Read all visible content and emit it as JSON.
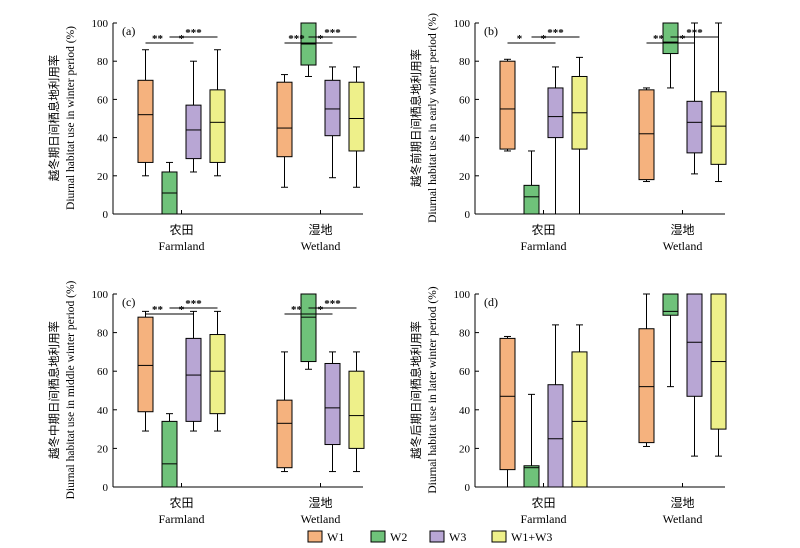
{
  "colors": {
    "W1": "#f5b27e",
    "W2": "#6fc27a",
    "W3": "#b8a6d4",
    "W1+W3": "#eef08a"
  },
  "legend": [
    "W1",
    "W2",
    "W3",
    "W1+W3"
  ],
  "chart_data": [
    {
      "type": "box",
      "label": "(a)",
      "ylabel_cn": "越冬期日间栖息地利用率",
      "ylabel_en": "Diurnal habitat use in winter period (%)",
      "ylim": [
        0,
        100
      ],
      "yticks": [
        0,
        20,
        40,
        60,
        80,
        100
      ],
      "groups": [
        {
          "name_cn": "农田",
          "name_en": "Farmland",
          "boxes": [
            {
              "series": "W1",
              "min": 20,
              "q1": 27,
              "median": 52,
              "q3": 70,
              "max": 86
            },
            {
              "series": "W2",
              "min": 0,
              "q1": 0,
              "median": 11,
              "q3": 22,
              "max": 27
            },
            {
              "series": "W3",
              "min": 22,
              "q1": 29,
              "median": 44,
              "q3": 57,
              "max": 80
            },
            {
              "series": "W1+W3",
              "min": 20,
              "q1": 27,
              "median": 48,
              "q3": 65,
              "max": 86
            }
          ],
          "sig": [
            {
              "from": 0,
              "to": 1,
              "label": "**",
              "level": 0
            },
            {
              "from": 1,
              "to": 2,
              "label": "*",
              "level": 0
            },
            {
              "from": 1,
              "to": 3,
              "label": "***",
              "level": 1
            }
          ]
        },
        {
          "name_cn": "湿地",
          "name_en": "Wetland",
          "boxes": [
            {
              "series": "W1",
              "min": 14,
              "q1": 30,
              "median": 45,
              "q3": 69,
              "max": 73
            },
            {
              "series": "W2",
              "min": 72,
              "q1": 78,
              "median": 89,
              "q3": 100,
              "max": 100
            },
            {
              "series": "W3",
              "min": 19,
              "q1": 41,
              "median": 55,
              "q3": 70,
              "max": 77
            },
            {
              "series": "W1+W3",
              "min": 14,
              "q1": 33,
              "median": 50,
              "q3": 69,
              "max": 77
            }
          ],
          "sig": [
            {
              "from": 0,
              "to": 1,
              "label": "***",
              "level": 0
            },
            {
              "from": 1,
              "to": 2,
              "label": "*",
              "level": 0
            },
            {
              "from": 1,
              "to": 3,
              "label": "***",
              "level": 1
            }
          ]
        }
      ]
    },
    {
      "type": "box",
      "label": "(b)",
      "ylabel_cn": "越冬前期日间栖息地利用率",
      "ylabel_en": "Diurnal habitat use in early winter period (%)",
      "ylim": [
        0,
        100
      ],
      "yticks": [
        0,
        20,
        40,
        60,
        80,
        100
      ],
      "groups": [
        {
          "name_cn": "农田",
          "name_en": "Farmland",
          "boxes": [
            {
              "series": "W1",
              "min": 33,
              "q1": 34,
              "median": 55,
              "q3": 80,
              "max": 81
            },
            {
              "series": "W2",
              "min": 0,
              "q1": 0,
              "median": 9,
              "q3": 15,
              "max": 33
            },
            {
              "series": "W3",
              "min": 0,
              "q1": 40,
              "median": 51,
              "q3": 66,
              "max": 77
            },
            {
              "series": "W1+W3",
              "min": 0,
              "q1": 34,
              "median": 53,
              "q3": 72,
              "max": 82
            }
          ],
          "sig": [
            {
              "from": 0,
              "to": 1,
              "label": "*",
              "level": 0
            },
            {
              "from": 1,
              "to": 2,
              "label": "*",
              "level": 0
            },
            {
              "from": 1,
              "to": 3,
              "label": "***",
              "level": 1
            }
          ]
        },
        {
          "name_cn": "湿地",
          "name_en": "Wetland",
          "boxes": [
            {
              "series": "W1",
              "min": 17,
              "q1": 18,
              "median": 42,
              "q3": 65,
              "max": 66
            },
            {
              "series": "W2",
              "min": 66,
              "q1": 84,
              "median": 90,
              "q3": 100,
              "max": 100
            },
            {
              "series": "W3",
              "min": 21,
              "q1": 32,
              "median": 48,
              "q3": 59,
              "max": 100
            },
            {
              "series": "W1+W3",
              "min": 17,
              "q1": 26,
              "median": 46,
              "q3": 64,
              "max": 100
            }
          ],
          "sig": [
            {
              "from": 0,
              "to": 1,
              "label": "**",
              "level": 0
            },
            {
              "from": 1,
              "to": 2,
              "label": "*",
              "level": 0
            },
            {
              "from": 1,
              "to": 3,
              "label": "***",
              "level": 1
            }
          ]
        }
      ]
    },
    {
      "type": "box",
      "label": "(c)",
      "ylabel_cn": "越冬中期日间栖息地利用率",
      "ylabel_en": "Diurnal habitat use in middle winter period (%)",
      "ylim": [
        0,
        100
      ],
      "yticks": [
        0,
        20,
        40,
        60,
        80,
        100
      ],
      "groups": [
        {
          "name_cn": "农田",
          "name_en": "Farmland",
          "boxes": [
            {
              "series": "W1",
              "min": 29,
              "q1": 39,
              "median": 63,
              "q3": 88,
              "max": 91
            },
            {
              "series": "W2",
              "min": 0,
              "q1": 0,
              "median": 12,
              "q3": 34,
              "max": 38
            },
            {
              "series": "W3",
              "min": 29,
              "q1": 34,
              "median": 58,
              "q3": 77,
              "max": 91
            },
            {
              "series": "W1+W3",
              "min": 29,
              "q1": 38,
              "median": 60,
              "q3": 79,
              "max": 91
            }
          ],
          "sig": [
            {
              "from": 0,
              "to": 1,
              "label": "**",
              "level": 0
            },
            {
              "from": 1,
              "to": 2,
              "label": "*",
              "level": 0
            },
            {
              "from": 1,
              "to": 3,
              "label": "***",
              "level": 1
            }
          ]
        },
        {
          "name_cn": "湿地",
          "name_en": "Wetland",
          "boxes": [
            {
              "series": "W1",
              "min": 8,
              "q1": 10,
              "median": 33,
              "q3": 45,
              "max": 70
            },
            {
              "series": "W2",
              "min": 61,
              "q1": 65,
              "median": 88,
              "q3": 100,
              "max": 100
            },
            {
              "series": "W3",
              "min": 8,
              "q1": 22,
              "median": 41,
              "q3": 64,
              "max": 70
            },
            {
              "series": "W1+W3",
              "min": 8,
              "q1": 20,
              "median": 37,
              "q3": 60,
              "max": 70
            }
          ],
          "sig": [
            {
              "from": 0,
              "to": 1,
              "label": "**",
              "level": 0
            },
            {
              "from": 1,
              "to": 2,
              "label": "*",
              "level": 0
            },
            {
              "from": 1,
              "to": 3,
              "label": "***",
              "level": 1
            }
          ]
        }
      ]
    },
    {
      "type": "box",
      "label": "(d)",
      "ylabel_cn": "越冬后期日间栖息地利用率",
      "ylabel_en": "Diurnal habitat use in later winter period (%)",
      "ylim": [
        0,
        100
      ],
      "yticks": [
        0,
        20,
        40,
        60,
        80,
        100
      ],
      "groups": [
        {
          "name_cn": "农田",
          "name_en": "Farmland",
          "boxes": [
            {
              "series": "W1",
              "min": 0,
              "q1": 9,
              "median": 47,
              "q3": 77,
              "max": 78
            },
            {
              "series": "W2",
              "min": 0,
              "q1": 0,
              "median": 10,
              "q3": 11,
              "max": 48
            },
            {
              "series": "W3",
              "min": 0,
              "q1": 0,
              "median": 25,
              "q3": 53,
              "max": 84
            },
            {
              "series": "W1+W3",
              "min": 0,
              "q1": 0,
              "median": 34,
              "q3": 70,
              "max": 84
            }
          ],
          "sig": []
        },
        {
          "name_cn": "湿地",
          "name_en": "Wetland",
          "boxes": [
            {
              "series": "W1",
              "min": 21,
              "q1": 23,
              "median": 52,
              "q3": 82,
              "max": 100
            },
            {
              "series": "W2",
              "min": 52,
              "q1": 89,
              "median": 91,
              "q3": 100,
              "max": 100
            },
            {
              "series": "W3",
              "min": 16,
              "q1": 47,
              "median": 75,
              "q3": 100,
              "max": 100
            },
            {
              "series": "W1+W3",
              "min": 16,
              "q1": 30,
              "median": 65,
              "q3": 100,
              "max": 100
            }
          ],
          "sig": []
        }
      ]
    }
  ]
}
